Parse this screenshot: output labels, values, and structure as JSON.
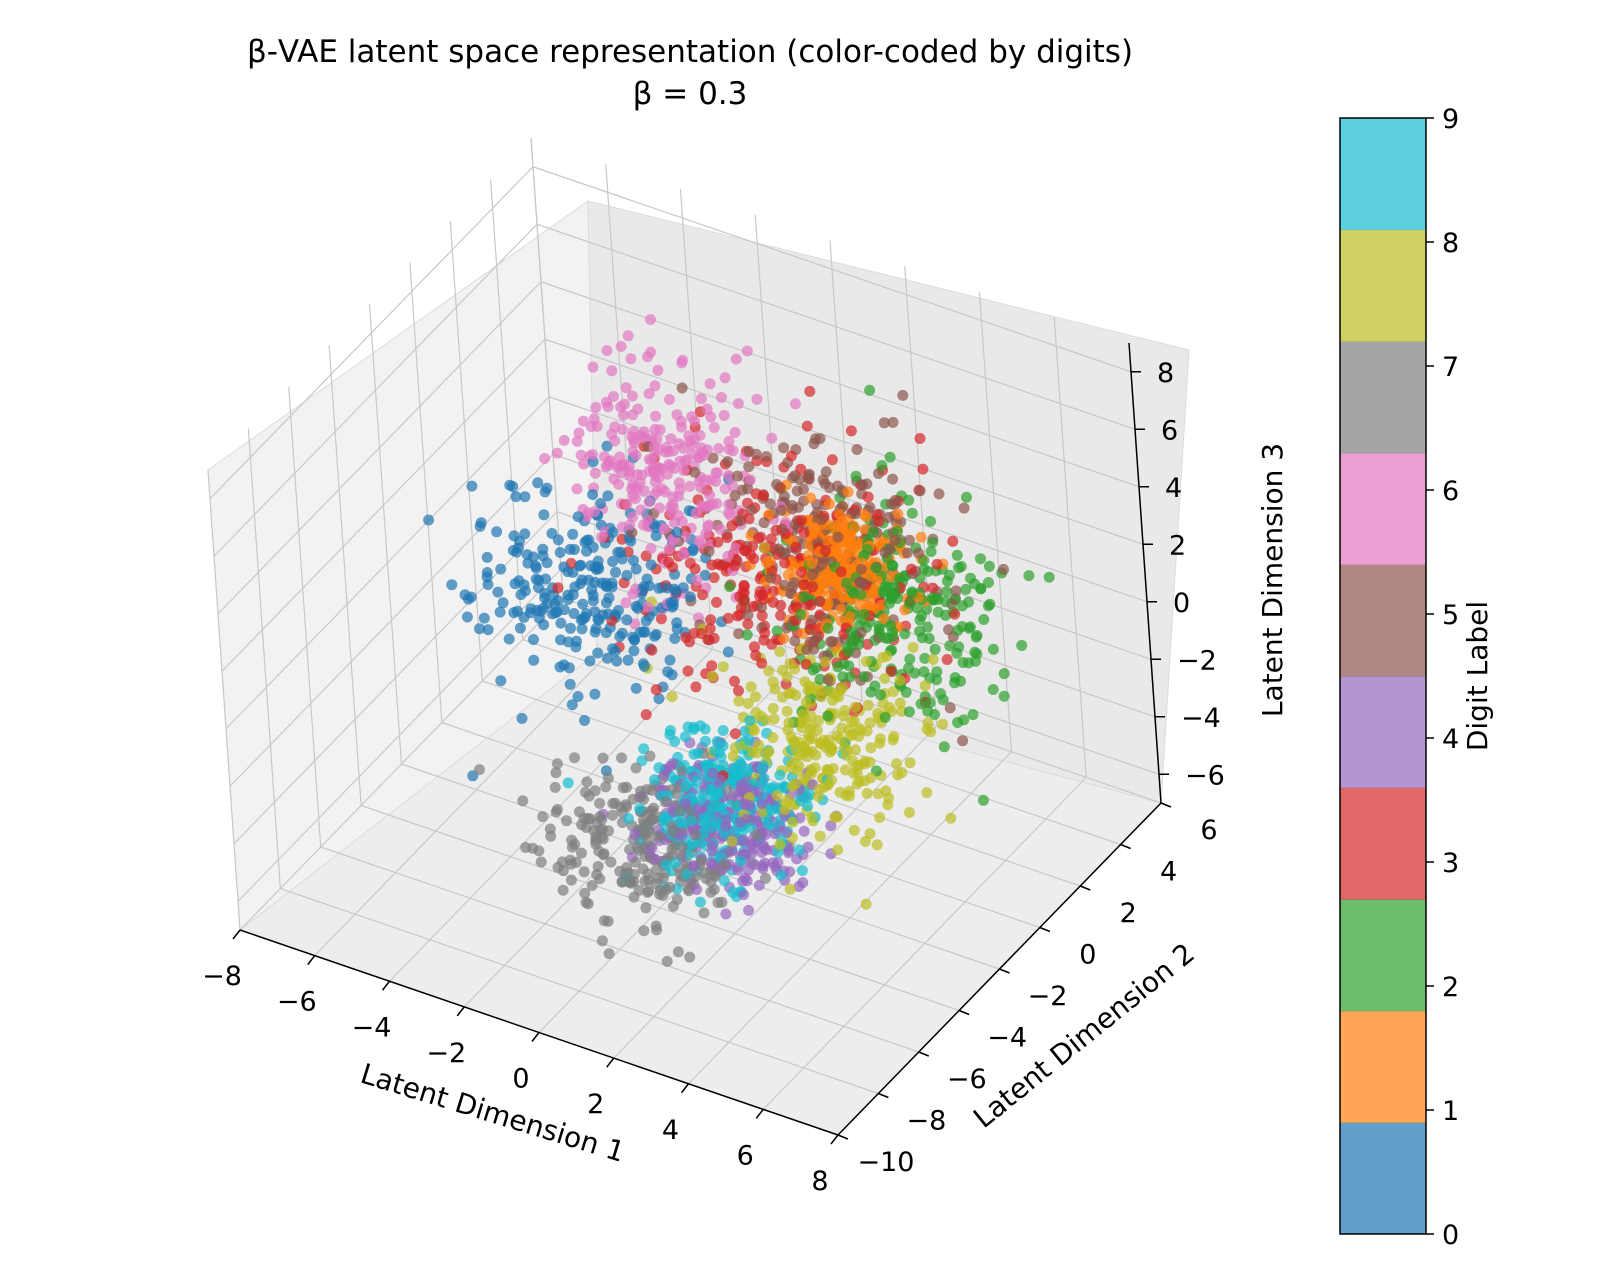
{
  "chart_data": {
    "type": "scatter",
    "projection": "3d",
    "title": "β-VAE latent space representation (color-coded by digits)",
    "subtitle": "β = 0.3",
    "xlabel": "Latent Dimension 1",
    "ylabel": "Latent Dimension 2",
    "zlabel": "Latent Dimension 3",
    "xlim": [
      -8,
      8
    ],
    "ylim": [
      -10,
      6
    ],
    "zlim": [
      -7,
      9
    ],
    "xticks": [
      "−8",
      "−6",
      "−4",
      "−2",
      "0",
      "2",
      "4",
      "6",
      "8"
    ],
    "yticks": [
      "−10",
      "−8",
      "−6",
      "−4",
      "−2",
      "0",
      "2",
      "4",
      "6"
    ],
    "zticks": [
      "−6",
      "−4",
      "−2",
      "0",
      "2",
      "4",
      "6",
      "8"
    ],
    "grid": true,
    "colorbar": {
      "label": "Digit Label",
      "ticks": [
        "0",
        "1",
        "2",
        "3",
        "4",
        "5",
        "6",
        "7",
        "8",
        "9"
      ],
      "colors": [
        "#1f77b4",
        "#ff7f0e",
        "#2ca02c",
        "#d62728",
        "#9467bd",
        "#8c564b",
        "#e377c2",
        "#7f7f7f",
        "#bcbd22",
        "#17becf"
      ],
      "alpha": 0.7
    },
    "marker_alpha": 0.7,
    "series": [
      {
        "digit": 0,
        "color": "#1f77b4",
        "approx_count": 1000,
        "center": [
          -3.0,
          -1.0,
          0.5
        ],
        "spread": [
          2.0,
          1.8,
          1.9
        ]
      },
      {
        "digit": 1,
        "color": "#ff7f0e",
        "approx_count": 1000,
        "center": [
          2.0,
          2.0,
          1.5
        ],
        "spread": [
          1.0,
          1.0,
          1.0
        ]
      },
      {
        "digit": 2,
        "color": "#2ca02c",
        "approx_count": 1000,
        "center": [
          3.5,
          2.0,
          0.5
        ],
        "spread": [
          2.0,
          2.0,
          2.0
        ]
      },
      {
        "digit": 3,
        "color": "#d62728",
        "approx_count": 1000,
        "center": [
          0.5,
          1.5,
          1.0
        ],
        "spread": [
          2.3,
          2.3,
          2.1
        ]
      },
      {
        "digit": 4,
        "color": "#9467bd",
        "approx_count": 1000,
        "center": [
          1.5,
          -3.0,
          -4.0
        ],
        "spread": [
          1.4,
          1.2,
          1.2
        ]
      },
      {
        "digit": 5,
        "color": "#8c564b",
        "approx_count": 1000,
        "center": [
          1.5,
          2.5,
          1.5
        ],
        "spread": [
          2.0,
          1.8,
          2.0
        ]
      },
      {
        "digit": 6,
        "color": "#e377c2",
        "approx_count": 1000,
        "center": [
          -2.0,
          1.0,
          3.5
        ],
        "spread": [
          1.6,
          1.6,
          2.2
        ]
      },
      {
        "digit": 7,
        "color": "#7f7f7f",
        "approx_count": 1000,
        "center": [
          0.0,
          -4.5,
          -4.5
        ],
        "spread": [
          1.6,
          1.4,
          1.3
        ]
      },
      {
        "digit": 8,
        "color": "#bcbd22",
        "approx_count": 1000,
        "center": [
          3.0,
          -1.0,
          -2.0
        ],
        "spread": [
          1.6,
          1.6,
          1.6
        ]
      },
      {
        "digit": 9,
        "color": "#17becf",
        "approx_count": 1000,
        "center": [
          1.5,
          -3.0,
          -3.5
        ],
        "spread": [
          1.3,
          1.3,
          1.2
        ]
      }
    ]
  }
}
